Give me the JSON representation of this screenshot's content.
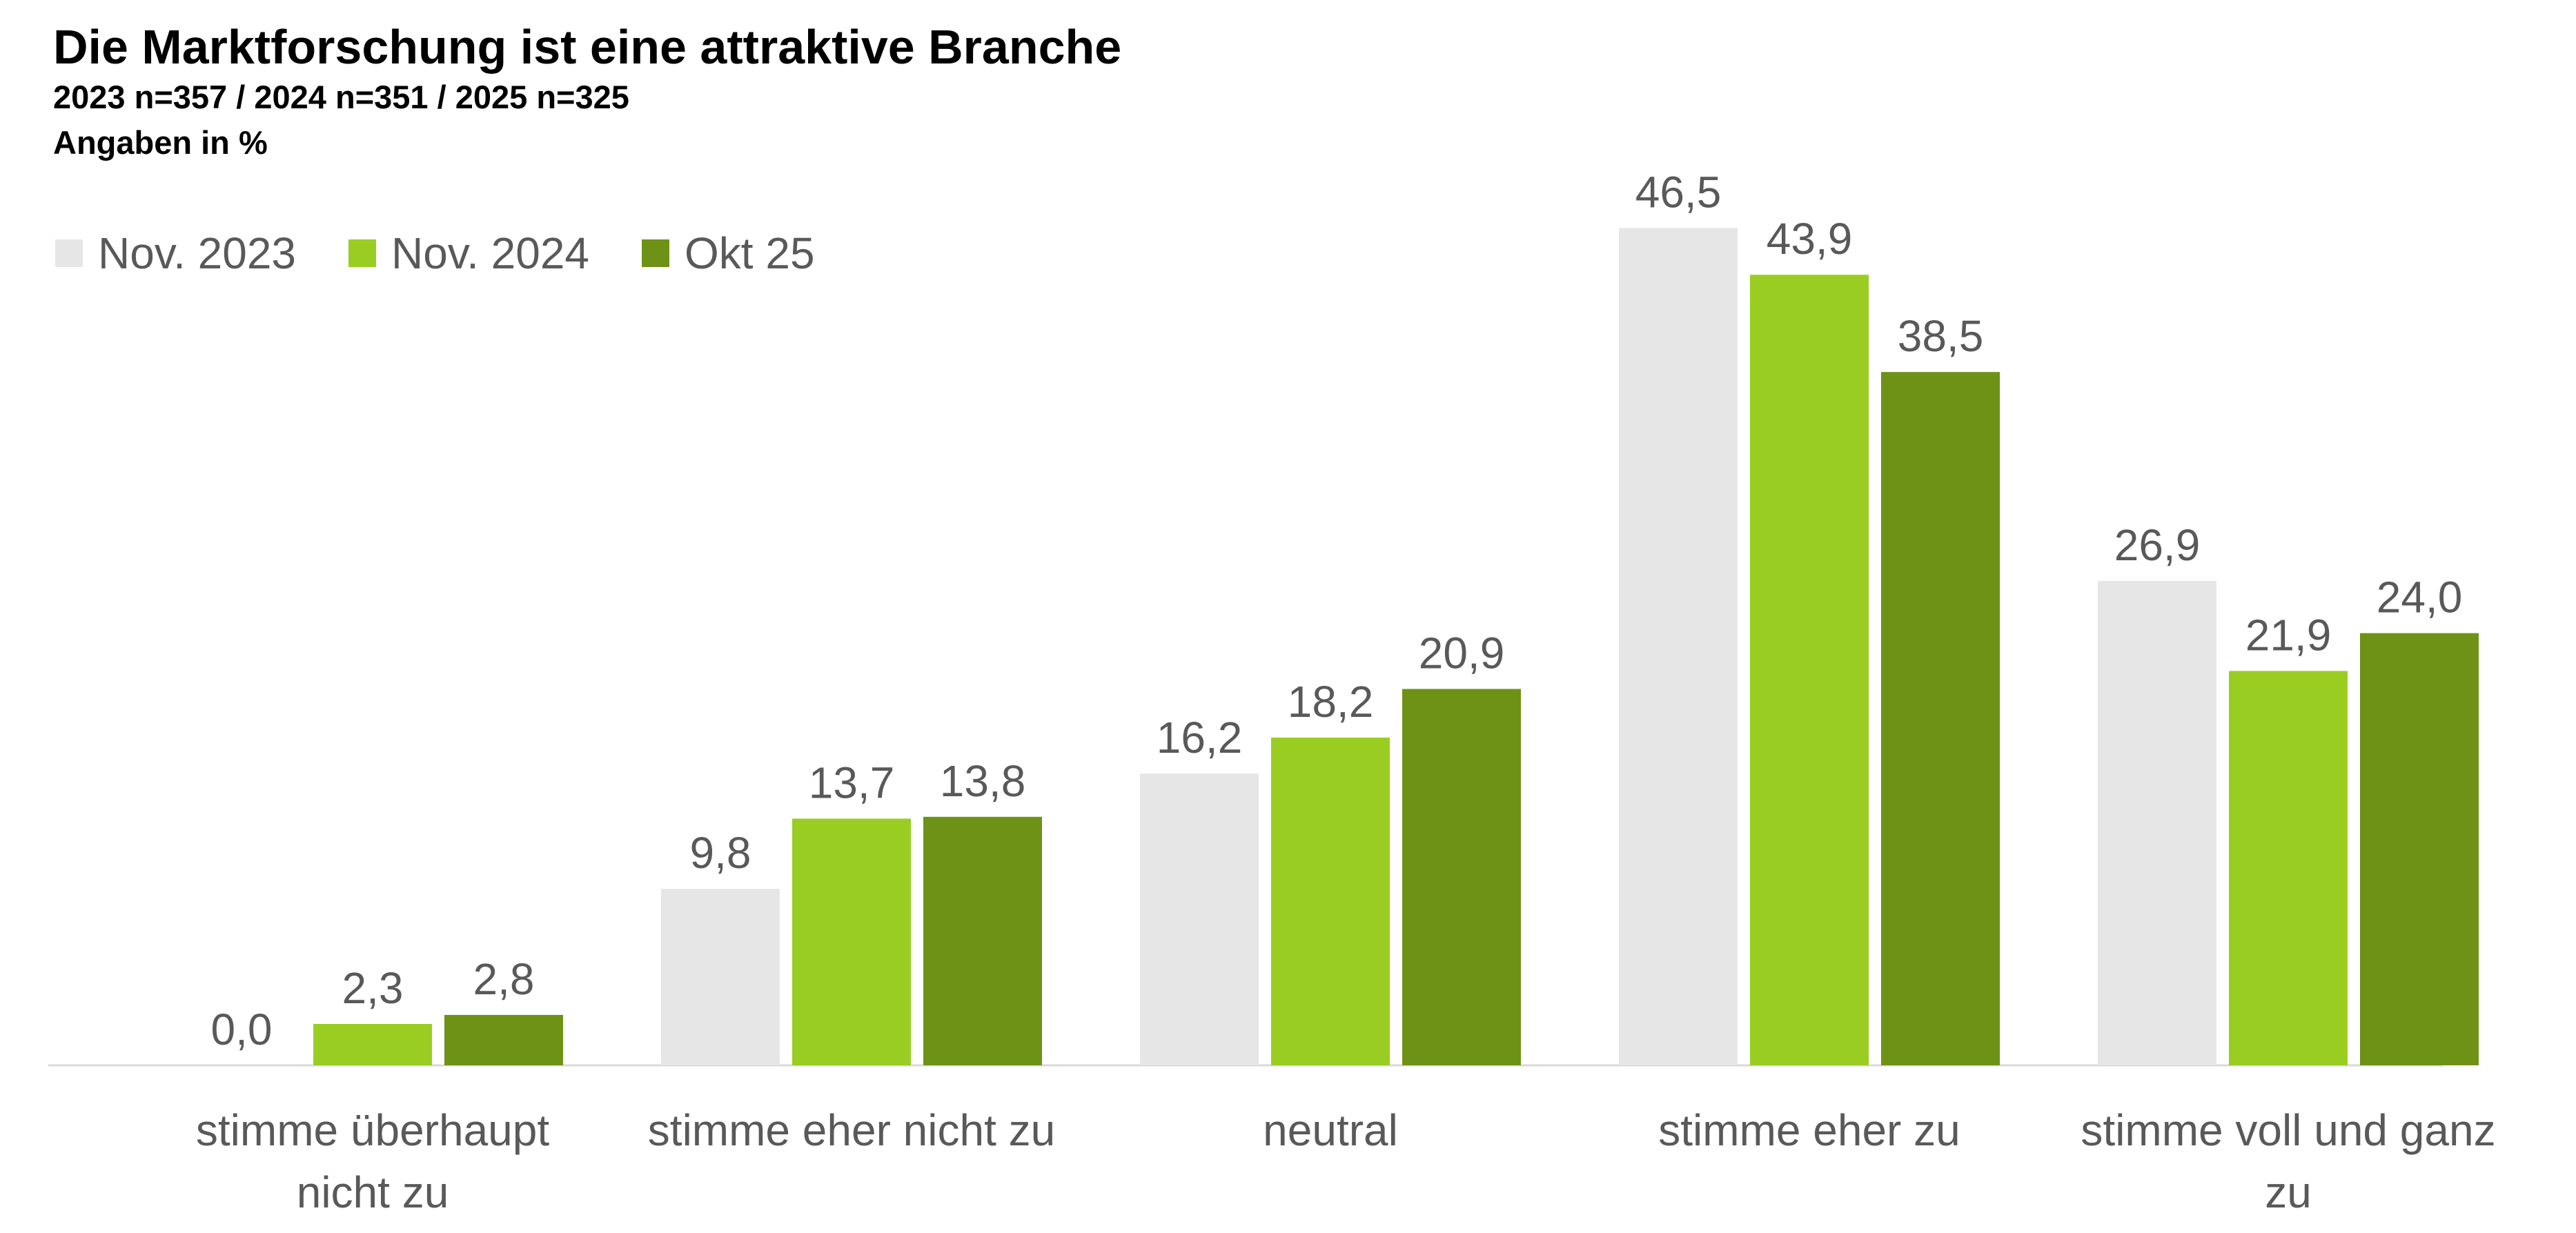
{
  "chart_data": {
    "type": "bar",
    "title": "Die Marktforschung ist eine attraktive Branche",
    "subtitle": "2023 n=357 / 2024 n=351 / 2025 n=325",
    "unit_note": "Angaben in %",
    "categories": [
      [
        "stimme überhaupt",
        "nicht zu"
      ],
      [
        "stimme eher nicht zu"
      ],
      [
        "neutral"
      ],
      [
        "stimme eher zu"
      ],
      [
        "stimme voll und ganz",
        "zu"
      ]
    ],
    "series": [
      {
        "name": "Nov. 2023",
        "color": "#E6E6E6",
        "values": [
          0.0,
          9.8,
          16.2,
          46.5,
          26.9
        ],
        "labels": [
          "0,0",
          "9,8",
          "16,2",
          "46,5",
          "26,9"
        ]
      },
      {
        "name": "Nov. 2024",
        "color": "#9ACD22",
        "values": [
          2.3,
          13.7,
          18.2,
          43.9,
          21.9
        ],
        "labels": [
          "2,3",
          "13,7",
          "18,2",
          "43,9",
          "21,9"
        ]
      },
      {
        "name": "Okt 25",
        "color": "#6E9216",
        "values": [
          2.8,
          13.8,
          20.9,
          38.5,
          24.0
        ],
        "labels": [
          "2,8",
          "13,8",
          "20,9",
          "38,5",
          "24,0"
        ]
      }
    ],
    "ylim": [
      0,
      50
    ],
    "grid": false,
    "legend_position": "top-left"
  }
}
